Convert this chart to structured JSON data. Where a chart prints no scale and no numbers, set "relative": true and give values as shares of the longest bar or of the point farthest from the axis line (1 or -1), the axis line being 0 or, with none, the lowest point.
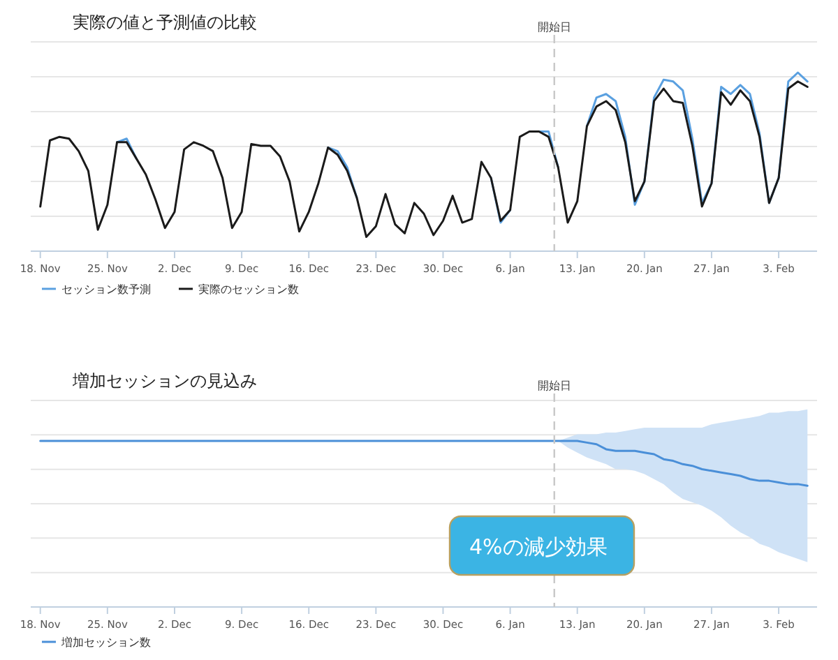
{
  "chart_data": [
    {
      "type": "line",
      "title": "実際の値と予測値の比較",
      "relative": true,
      "grid": "y",
      "legend": "bottom left",
      "tick_labels": "x",
      "marker": "none",
      "line_style": "solid",
      "categories": [
        "18. Nov",
        null,
        null,
        null,
        null,
        null,
        null,
        "25. Nov",
        null,
        null,
        null,
        null,
        null,
        null,
        "2. Dec",
        null,
        null,
        null,
        null,
        null,
        null,
        "9. Dec",
        null,
        null,
        null,
        null,
        null,
        null,
        "16. Dec",
        null,
        null,
        null,
        null,
        null,
        null,
        "23. Dec",
        null,
        null,
        null,
        null,
        null,
        null,
        "30. Dec",
        null,
        null,
        null,
        null,
        null,
        null,
        "6. Jan",
        null,
        null,
        null,
        null,
        null,
        null,
        "13. Jan",
        null,
        null,
        null,
        null,
        null,
        null,
        "20. Jan",
        null,
        null,
        null,
        null,
        null,
        null,
        "27. Jan",
        null,
        null,
        null,
        null,
        null,
        null,
        "3. Feb",
        null,
        null,
        null
      ],
      "annotations": [
        "開始日"
      ],
      "series": [
        {
          "name": "セッション数予測",
          "color": "#5aa0e0",
          "values": [
            null,
            null,
            null,
            null,
            null,
            null,
            null,
            null,
            0.61,
            0.63,
            0.52,
            null,
            null,
            null,
            null,
            null,
            null,
            null,
            null,
            null,
            null,
            null,
            null,
            null,
            null,
            null,
            null,
            null,
            null,
            null,
            0.58,
            0.56,
            0.47,
            0.3,
            null,
            null,
            null,
            null,
            null,
            null,
            null,
            null,
            null,
            null,
            null,
            null,
            null,
            0.41,
            0.16,
            0.23,
            null,
            null,
            0.67,
            0.67,
            0.47,
            null,
            null,
            0.7,
            0.86,
            0.88,
            0.84,
            0.64,
            0.26,
            0.39,
            0.86,
            0.96,
            0.95,
            0.9,
            0.63,
            0.27,
            0.38,
            0.92,
            0.88,
            0.93,
            0.88,
            0.66,
            0.27,
            0.41,
            0.95,
            1.0,
            0.95
          ]
        },
        {
          "name": "実際のセッション数",
          "color": "#1a1a1a",
          "values": [
            0.25,
            0.62,
            0.64,
            0.63,
            0.56,
            0.45,
            0.12,
            0.26,
            0.61,
            0.61,
            0.52,
            0.43,
            0.29,
            0.13,
            0.22,
            0.57,
            0.61,
            0.59,
            0.56,
            0.41,
            0.13,
            0.22,
            0.6,
            0.59,
            0.59,
            0.53,
            0.39,
            0.11,
            0.22,
            0.38,
            0.58,
            0.54,
            0.45,
            0.3,
            0.08,
            0.14,
            0.32,
            0.15,
            0.1,
            0.27,
            0.21,
            0.09,
            0.17,
            0.31,
            0.16,
            0.18,
            0.5,
            0.41,
            0.17,
            0.23,
            0.64,
            0.67,
            0.67,
            0.64,
            0.47,
            0.16,
            0.28,
            0.7,
            0.81,
            0.84,
            0.79,
            0.61,
            0.28,
            0.39,
            0.84,
            0.91,
            0.84,
            0.83,
            0.59,
            0.25,
            0.38,
            0.89,
            0.82,
            0.9,
            0.84,
            0.64,
            0.27,
            0.41,
            0.91,
            0.95,
            0.92
          ]
        }
      ]
    },
    {
      "type": "line",
      "title": "増加セッションの見込み",
      "relative": true,
      "grid": "y",
      "legend": "bottom left",
      "tick_labels": "x",
      "marker": "none",
      "line_style": "solid",
      "categories": [
        "18. Nov",
        null,
        null,
        null,
        null,
        null,
        null,
        "25. Nov",
        null,
        null,
        null,
        null,
        null,
        null,
        "2. Dec",
        null,
        null,
        null,
        null,
        null,
        null,
        "9. Dec",
        null,
        null,
        null,
        null,
        null,
        null,
        "16. Dec",
        null,
        null,
        null,
        null,
        null,
        null,
        "23. Dec",
        null,
        null,
        null,
        null,
        null,
        null,
        "30. Dec",
        null,
        null,
        null,
        null,
        null,
        null,
        "6. Jan",
        null,
        null,
        null,
        null,
        null,
        null,
        "13. Jan",
        null,
        null,
        null,
        null,
        null,
        null,
        "20. Jan",
        null,
        null,
        null,
        null,
        null,
        null,
        "27. Jan",
        null,
        null,
        null,
        null,
        null,
        null,
        "3. Feb",
        null,
        null,
        null
      ],
      "annotations": [
        "開始日",
        "4%の減少効果"
      ],
      "series": [
        {
          "name": "増加セッション数",
          "color": "#4a8fd8",
          "values": [
            1,
            1,
            1,
            1,
            1,
            1,
            1,
            1,
            1,
            1,
            1,
            1,
            1,
            1,
            1,
            1,
            1,
            1,
            1,
            1,
            1,
            1,
            1,
            1,
            1,
            1,
            1,
            1,
            1,
            1,
            1,
            1,
            1,
            1,
            1,
            1,
            1,
            1,
            1,
            1,
            1,
            1,
            1,
            1,
            1,
            1,
            1,
            1,
            1,
            1,
            1,
            1,
            1,
            1,
            1,
            1,
            1,
            0.99,
            0.98,
            0.95,
            0.94,
            0.94,
            0.94,
            0.93,
            0.92,
            0.89,
            0.88,
            0.86,
            0.85,
            0.83,
            0.82,
            0.81,
            0.8,
            0.79,
            0.77,
            0.76,
            0.76,
            0.75,
            0.74,
            0.74,
            0.73
          ],
          "lower": [
            null,
            null,
            null,
            null,
            null,
            null,
            null,
            null,
            null,
            null,
            null,
            null,
            null,
            null,
            null,
            null,
            null,
            null,
            null,
            null,
            null,
            null,
            null,
            null,
            null,
            null,
            null,
            null,
            null,
            null,
            null,
            null,
            null,
            null,
            null,
            null,
            null,
            null,
            null,
            null,
            null,
            null,
            null,
            null,
            null,
            null,
            null,
            null,
            null,
            null,
            null,
            null,
            null,
            null,
            1,
            0.96,
            0.93,
            0.9,
            0.88,
            0.86,
            0.83,
            0.83,
            0.82,
            0.8,
            0.77,
            0.74,
            0.69,
            0.65,
            0.63,
            0.61,
            0.58,
            0.54,
            0.49,
            0.45,
            0.42,
            0.38,
            0.36,
            0.33,
            0.31,
            0.29,
            0.27
          ],
          "upper": [
            null,
            null,
            null,
            null,
            null,
            null,
            null,
            null,
            null,
            null,
            null,
            null,
            null,
            null,
            null,
            null,
            null,
            null,
            null,
            null,
            null,
            null,
            null,
            null,
            null,
            null,
            null,
            null,
            null,
            null,
            null,
            null,
            null,
            null,
            null,
            null,
            null,
            null,
            null,
            null,
            null,
            null,
            null,
            null,
            null,
            null,
            null,
            null,
            null,
            null,
            null,
            null,
            null,
            null,
            1,
            1.02,
            1.04,
            1.04,
            1.04,
            1.05,
            1.05,
            1.06,
            1.07,
            1.08,
            1.08,
            1.08,
            1.08,
            1.08,
            1.08,
            1.08,
            1.1,
            1.11,
            1.12,
            1.13,
            1.14,
            1.15,
            1.17,
            1.17,
            1.18,
            1.18,
            1.19
          ]
        }
      ]
    }
  ]
}
